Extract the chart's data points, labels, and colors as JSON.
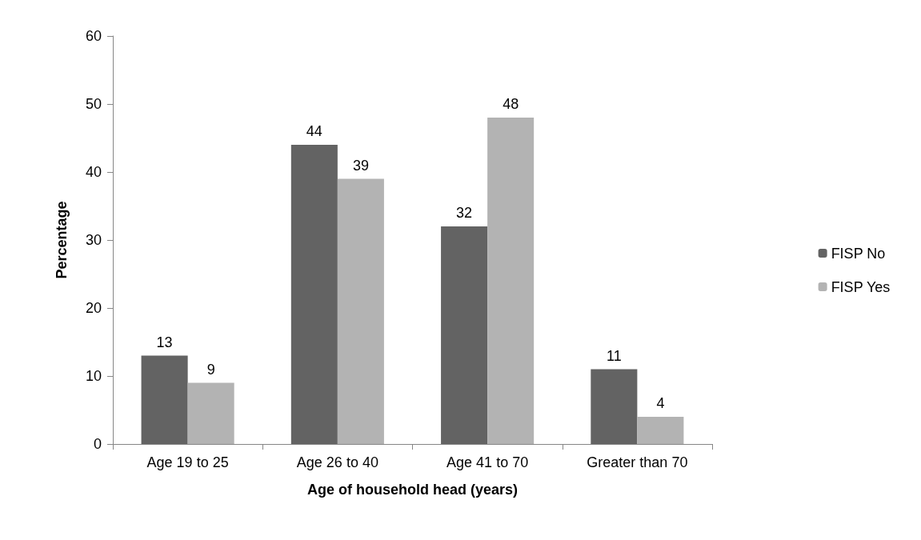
{
  "chart_data": {
    "type": "bar",
    "xlabel": "Age of household head (years)",
    "ylabel": "Percentage",
    "categories": [
      "Age 19 to 25",
      "Age 26 to 40",
      "Age 41 to 70",
      "Greater than 70"
    ],
    "series": [
      {
        "name": "FISP No",
        "color": "#636363",
        "values": [
          13,
          44,
          32,
          11
        ]
      },
      {
        "name": "FISP Yes",
        "color": "#b3b3b3",
        "values": [
          9,
          39,
          48,
          4
        ]
      }
    ],
    "ylim": [
      0,
      60
    ],
    "yticks": [
      0,
      10,
      20,
      30,
      40,
      50,
      60
    ],
    "grid": false,
    "legend": "right",
    "data_labels": true
  }
}
